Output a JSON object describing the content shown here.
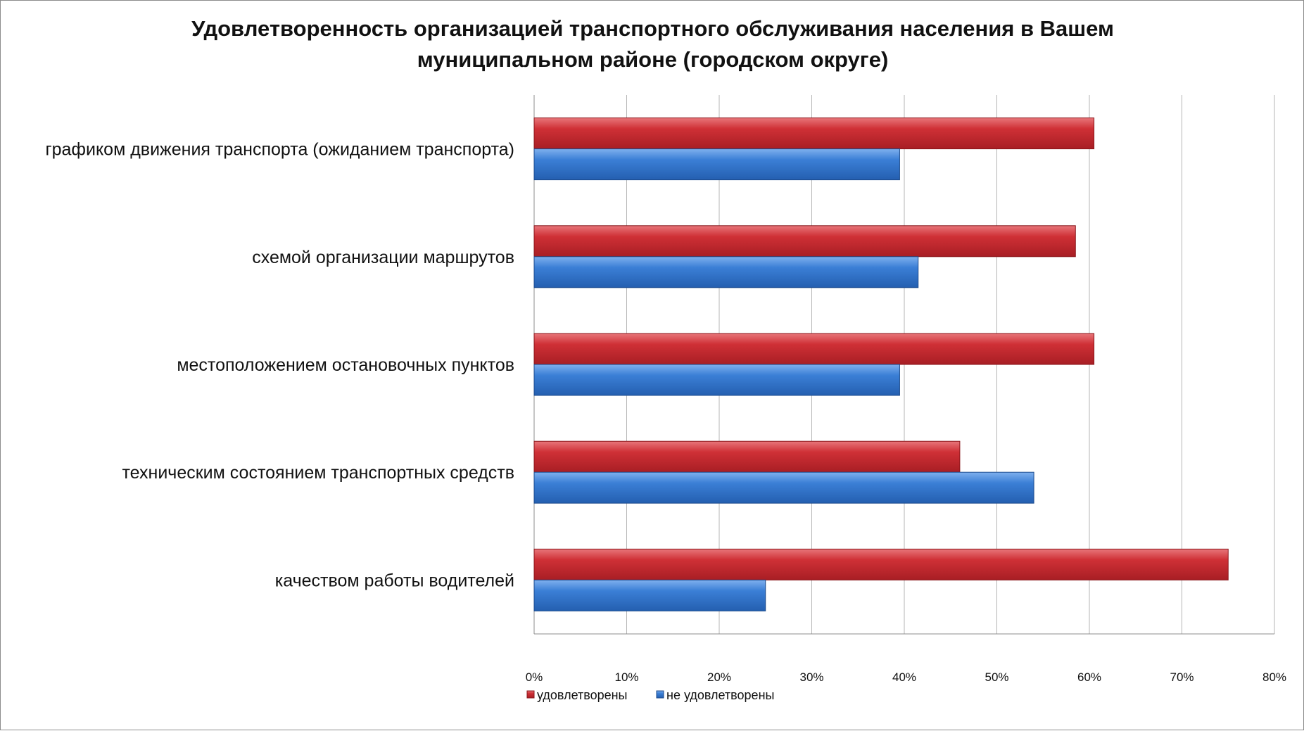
{
  "chart_data": {
    "type": "bar",
    "orientation": "horizontal",
    "title_lines": [
      "Удовлетворенность организацией транспортного обслуживания населения в Вашем",
      "муниципальном районе (городском округе)"
    ],
    "categories": [
      "графиком движения транспорта (ожиданием транспорта)",
      "схемой организации маршрутов",
      "местоположением остановочных пунктов",
      "техническим состоянием транспортных средств",
      "качеством работы водителей"
    ],
    "series": [
      {
        "name": "удовлетворены",
        "color": "#c0272d",
        "values": [
          60.5,
          58.5,
          60.5,
          46,
          75
        ]
      },
      {
        "name": "не удовлетворены",
        "color": "#2e6fc4",
        "values": [
          39.5,
          41.5,
          39.5,
          54,
          25
        ]
      }
    ],
    "xlim": [
      0,
      80
    ],
    "x_ticks": [
      0,
      10,
      20,
      30,
      40,
      50,
      60,
      70,
      80
    ],
    "x_tick_labels": [
      "0%",
      "10%",
      "20%",
      "30%",
      "40%",
      "50%",
      "60%",
      "70%",
      "80%"
    ],
    "grid": true,
    "legend_position": "bottom-left"
  }
}
